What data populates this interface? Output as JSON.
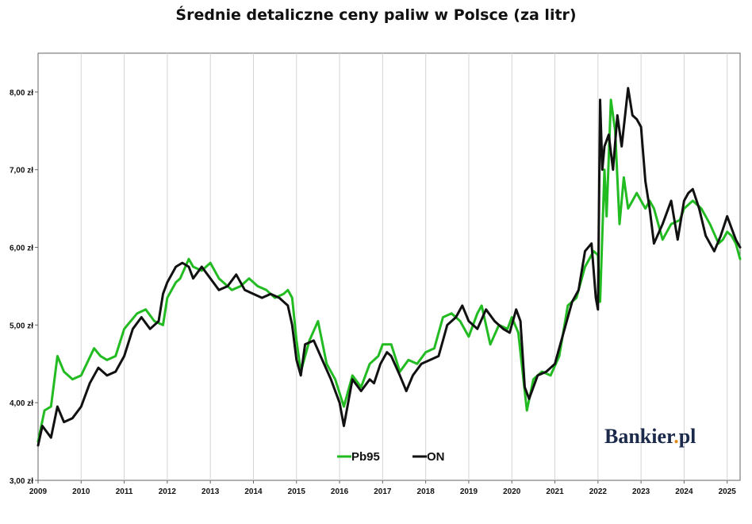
{
  "chart_data": {
    "type": "line",
    "title": "Średnie detaliczne ceny paliw w Polsce (za litr)",
    "xlabel": "",
    "ylabel": "",
    "xlim": [
      2009.0,
      2025.3
    ],
    "ylim": [
      3.0,
      8.5
    ],
    "y_ticks": [
      {
        "value": 3.0,
        "label": "3,00 zł"
      },
      {
        "value": 4.0,
        "label": "4,00 zł"
      },
      {
        "value": 5.0,
        "label": "5,00 zł"
      },
      {
        "value": 6.0,
        "label": "6,00 zł"
      },
      {
        "value": 7.0,
        "label": "7,00 zł"
      },
      {
        "value": 8.0,
        "label": "8,00 zł"
      }
    ],
    "x_ticks": [
      "2009",
      "2010",
      "2011",
      "2012",
      "2013",
      "2014",
      "2015",
      "2016",
      "2017",
      "2018",
      "2019",
      "2020",
      "2021",
      "2022",
      "2023",
      "2024",
      "2025"
    ],
    "grid": "vertical",
    "legend_position": "bottom-center",
    "series": [
      {
        "name": "Pb95",
        "color": "#22bb22",
        "x": [
          2009.0,
          2009.15,
          2009.3,
          2009.45,
          2009.6,
          2009.8,
          2010.0,
          2010.3,
          2010.45,
          2010.6,
          2010.8,
          2011.0,
          2011.3,
          2011.5,
          2011.7,
          2011.9,
          2012.0,
          2012.2,
          2012.3,
          2012.5,
          2012.6,
          2012.8,
          2013.0,
          2013.2,
          2013.5,
          2013.7,
          2013.9,
          2014.1,
          2014.3,
          2014.5,
          2014.7,
          2014.8,
          2014.9,
          2015.0,
          2015.1,
          2015.3,
          2015.5,
          2015.7,
          2015.9,
          2016.1,
          2016.3,
          2016.5,
          2016.7,
          2016.9,
          2017.0,
          2017.2,
          2017.4,
          2017.6,
          2017.8,
          2018.0,
          2018.2,
          2018.4,
          2018.6,
          2018.8,
          2019.0,
          2019.2,
          2019.3,
          2019.5,
          2019.7,
          2019.9,
          2020.0,
          2020.15,
          2020.25,
          2020.35,
          2020.5,
          2020.7,
          2020.9,
          2021.1,
          2021.3,
          2021.5,
          2021.7,
          2021.9,
          2022.0,
          2022.05,
          2022.15,
          2022.2,
          2022.3,
          2022.4,
          2022.5,
          2022.6,
          2022.7,
          2022.8,
          2022.9,
          2023.0,
          2023.1,
          2023.2,
          2023.3,
          2023.5,
          2023.7,
          2023.9,
          2024.0,
          2024.2,
          2024.4,
          2024.6,
          2024.8,
          2024.9,
          2025.0,
          2025.1,
          2025.2,
          2025.3
        ],
        "values": [
          3.5,
          3.9,
          3.95,
          4.6,
          4.4,
          4.3,
          4.35,
          4.7,
          4.6,
          4.55,
          4.6,
          4.95,
          5.15,
          5.2,
          5.05,
          5.0,
          5.35,
          5.55,
          5.6,
          5.85,
          5.75,
          5.7,
          5.8,
          5.6,
          5.45,
          5.5,
          5.6,
          5.5,
          5.45,
          5.35,
          5.4,
          5.45,
          5.35,
          4.8,
          4.4,
          4.8,
          5.05,
          4.5,
          4.3,
          3.95,
          4.35,
          4.2,
          4.5,
          4.6,
          4.75,
          4.75,
          4.4,
          4.55,
          4.5,
          4.65,
          4.7,
          5.1,
          5.15,
          5.05,
          4.85,
          5.15,
          5.25,
          4.75,
          5.0,
          4.95,
          5.1,
          4.9,
          4.4,
          3.9,
          4.3,
          4.4,
          4.35,
          4.6,
          5.25,
          5.35,
          5.75,
          5.95,
          5.9,
          5.3,
          7.0,
          6.4,
          7.9,
          7.5,
          6.3,
          6.9,
          6.5,
          6.6,
          6.7,
          6.6,
          6.5,
          6.6,
          6.5,
          6.1,
          6.3,
          6.35,
          6.5,
          6.6,
          6.5,
          6.3,
          6.05,
          6.1,
          6.2,
          6.15,
          6.05,
          5.85
        ]
      },
      {
        "name": "ON",
        "color": "#111111",
        "x": [
          2009.0,
          2009.1,
          2009.3,
          2009.45,
          2009.6,
          2009.8,
          2010.0,
          2010.2,
          2010.4,
          2010.6,
          2010.8,
          2011.0,
          2011.2,
          2011.4,
          2011.6,
          2011.8,
          2011.9,
          2012.0,
          2012.1,
          2012.2,
          2012.35,
          2012.5,
          2012.6,
          2012.8,
          2013.0,
          2013.2,
          2013.4,
          2013.6,
          2013.8,
          2014.0,
          2014.2,
          2014.4,
          2014.6,
          2014.8,
          2014.9,
          2015.0,
          2015.1,
          2015.2,
          2015.4,
          2015.6,
          2015.8,
          2015.9,
          2016.0,
          2016.1,
          2016.3,
          2016.5,
          2016.7,
          2016.8,
          2016.95,
          2017.1,
          2017.2,
          2017.4,
          2017.55,
          2017.7,
          2017.9,
          2018.1,
          2018.3,
          2018.4,
          2018.5,
          2018.7,
          2018.85,
          2019.0,
          2019.2,
          2019.4,
          2019.6,
          2019.8,
          2019.95,
          2020.1,
          2020.2,
          2020.3,
          2020.4,
          2020.6,
          2020.8,
          2021.0,
          2021.2,
          2021.4,
          2021.55,
          2021.7,
          2021.85,
          2021.95,
          2022.0,
          2022.05,
          2022.1,
          2022.15,
          2022.25,
          2022.35,
          2022.45,
          2022.55,
          2022.7,
          2022.8,
          2022.9,
          2023.0,
          2023.1,
          2023.2,
          2023.3,
          2023.5,
          2023.7,
          2023.85,
          2024.0,
          2024.1,
          2024.2,
          2024.35,
          2024.5,
          2024.7,
          2024.85,
          2025.0,
          2025.1,
          2025.2,
          2025.3
        ],
        "values": [
          3.45,
          3.7,
          3.55,
          3.95,
          3.75,
          3.8,
          3.95,
          4.25,
          4.45,
          4.35,
          4.4,
          4.6,
          4.95,
          5.1,
          4.95,
          5.05,
          5.4,
          5.55,
          5.65,
          5.75,
          5.8,
          5.75,
          5.6,
          5.75,
          5.6,
          5.45,
          5.5,
          5.65,
          5.45,
          5.4,
          5.35,
          5.4,
          5.35,
          5.25,
          5.0,
          4.55,
          4.35,
          4.75,
          4.8,
          4.55,
          4.3,
          4.15,
          4.0,
          3.7,
          4.3,
          4.15,
          4.3,
          4.25,
          4.5,
          4.65,
          4.6,
          4.35,
          4.15,
          4.35,
          4.5,
          4.55,
          4.6,
          4.8,
          5.0,
          5.1,
          5.25,
          5.05,
          4.95,
          5.2,
          5.05,
          4.95,
          4.9,
          5.2,
          5.05,
          4.2,
          4.05,
          4.35,
          4.4,
          4.5,
          4.9,
          5.3,
          5.45,
          5.95,
          6.05,
          5.35,
          5.2,
          7.9,
          7.0,
          7.3,
          7.45,
          7.0,
          7.7,
          7.3,
          8.05,
          7.7,
          7.65,
          7.55,
          6.85,
          6.5,
          6.05,
          6.3,
          6.6,
          6.1,
          6.6,
          6.7,
          6.75,
          6.5,
          6.15,
          5.95,
          6.15,
          6.4,
          6.25,
          6.1,
          6.0
        ]
      }
    ]
  },
  "legend": {
    "items": [
      {
        "label": "Pb95",
        "color": "#22bb22"
      },
      {
        "label": "ON",
        "color": "#111111"
      }
    ]
  },
  "watermark": {
    "text_main": "Bankier",
    "text_dot": ".",
    "text_tld": "pl",
    "dot_color": "#e08a1e",
    "text_color": "#1b2a4a"
  }
}
